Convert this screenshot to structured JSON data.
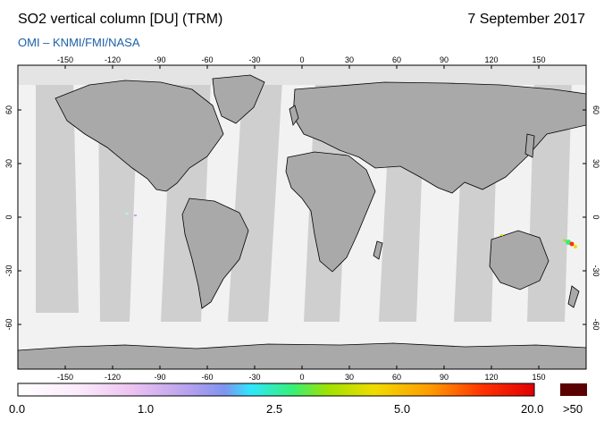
{
  "header": {
    "title": "SO2 vertical column [DU] (TRM)",
    "date": "7 September 2017",
    "credit": "OMI  –  KNMI/FMI/NASA"
  },
  "map": {
    "lon_ticks": [
      "-150",
      "-120",
      "-90",
      "-60",
      "-30",
      "0",
      "30",
      "60",
      "90",
      "120",
      "150"
    ],
    "lat_ticks": [
      "60",
      "30",
      "0",
      "-30",
      "-60"
    ],
    "land_color": "#a9a9a9",
    "ocean_color": "#f2f2f2",
    "coast_color": "#000000"
  },
  "colorbar": {
    "labels": [
      "0.0",
      "1.0",
      "2.5",
      "5.0",
      "20.0",
      ">50"
    ],
    "colors": [
      "#ffffff",
      "#f3d8f5",
      "#c9a0ef",
      "#8a8ff0",
      "#2fe6ff",
      "#35f07a",
      "#9fe200",
      "#f0dc00",
      "#ff9a00",
      "#ff3200",
      "#e00000"
    ],
    "overflow_color": "#5a0000"
  }
}
